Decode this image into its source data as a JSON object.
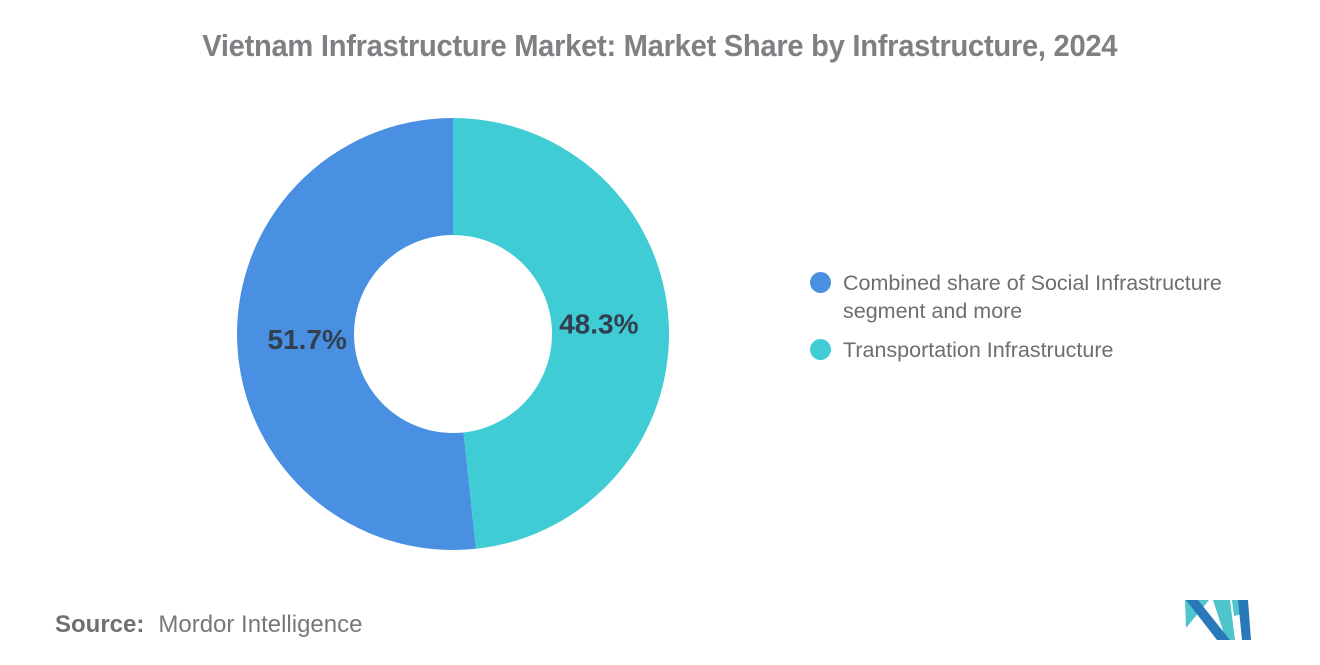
{
  "title": "Vietnam Infrastructure Market: Market Share by Infrastructure, 2024",
  "chart_data": {
    "type": "pie",
    "donut": true,
    "start_angle_deg": 173.9,
    "inner_radius_ratio": 0.46,
    "legend_position": "right",
    "label_format": "percent",
    "label_color": "#323f4e",
    "slices": [
      {
        "label": "Combined share of Social Infrastructure segment and more",
        "value": 51.7,
        "display": "51.7%",
        "color": "#4a90e2"
      },
      {
        "label": "Transportation Infrastructure",
        "value": 48.3,
        "display": "48.3%",
        "color": "#3fccd4"
      }
    ]
  },
  "legend": {
    "items": [
      {
        "lines": [
          "Combined share of Social Infrastructure",
          "segment and more"
        ],
        "color": "#4a90e2"
      },
      {
        "lines": [
          "Transportation Infrastructure"
        ],
        "color": "#3fccd4"
      }
    ]
  },
  "source": {
    "prefix": "Source:",
    "text": "Mordor Intelligence"
  },
  "logo": {
    "name": "mordor-intelligence-logo",
    "teal": "#4fc4cb",
    "blue": "#2878ba"
  }
}
